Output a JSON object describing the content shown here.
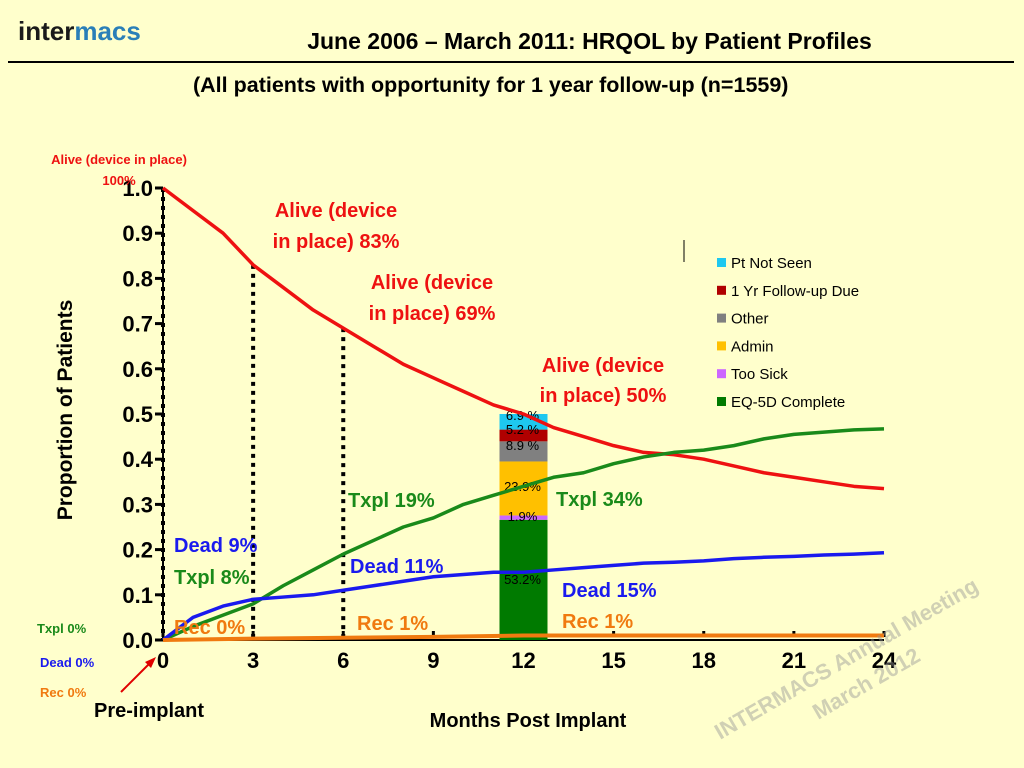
{
  "logo": {
    "part1": "inter",
    "part2": "macs"
  },
  "title": "June 2006 – March 2011:  HRQOL by Patient Profiles",
  "subtitle": "(All patients with opportunity for 1 year follow-up (n=1559)",
  "watermark": {
    "line1": "INTERMACS Annual Meeting",
    "line2": "March 2012"
  },
  "colors": {
    "alive": "#ee1111",
    "txpl": "#1a8a1a",
    "dead": "#1a1aee",
    "rec": "#f07a10",
    "pt_not_seen": "#1ec8f0",
    "followup_due": "#b00000",
    "other": "#808080",
    "admin": "#ffc000",
    "too_sick": "#cc66ff",
    "eq5d": "#007a00"
  },
  "chart_data": {
    "type": "line",
    "ylabel": "Proportion of Patients",
    "xlabel": "Months Post Implant",
    "xlim": [
      0,
      24
    ],
    "ylim": [
      0,
      1.0
    ],
    "xticks": [
      "0",
      "3",
      "6",
      "9",
      "12",
      "15",
      "18",
      "21",
      "24"
    ],
    "yticks": [
      "0.0",
      "0.1",
      "0.2",
      "0.3",
      "0.4",
      "0.5",
      "0.6",
      "0.7",
      "0.8",
      "0.9",
      "1.0"
    ],
    "series": [
      {
        "key": "alive",
        "x": [
          0,
          1,
          2,
          3,
          4,
          5,
          6,
          7,
          8,
          9,
          10,
          11,
          12,
          13,
          14,
          15,
          16,
          17,
          18,
          19,
          20,
          21,
          22,
          23,
          24
        ],
        "values": [
          1.0,
          0.95,
          0.9,
          0.83,
          0.78,
          0.73,
          0.69,
          0.65,
          0.61,
          0.58,
          0.55,
          0.52,
          0.5,
          0.47,
          0.45,
          0.43,
          0.415,
          0.41,
          0.4,
          0.385,
          0.37,
          0.36,
          0.35,
          0.34,
          0.335
        ]
      },
      {
        "key": "txpl",
        "x": [
          0,
          1,
          2,
          3,
          4,
          5,
          6,
          7,
          8,
          9,
          10,
          11,
          12,
          13,
          14,
          15,
          16,
          17,
          18,
          19,
          20,
          21,
          22,
          23,
          24
        ],
        "values": [
          0.0,
          0.03,
          0.055,
          0.08,
          0.12,
          0.155,
          0.19,
          0.22,
          0.25,
          0.27,
          0.3,
          0.32,
          0.34,
          0.36,
          0.37,
          0.39,
          0.405,
          0.415,
          0.42,
          0.43,
          0.445,
          0.455,
          0.46,
          0.465,
          0.467
        ]
      },
      {
        "key": "dead",
        "x": [
          0,
          1,
          2,
          3,
          4,
          5,
          6,
          7,
          8,
          9,
          10,
          11,
          12,
          13,
          14,
          15,
          16,
          17,
          18,
          19,
          20,
          21,
          22,
          23,
          24
        ],
        "values": [
          0.0,
          0.05,
          0.075,
          0.09,
          0.095,
          0.1,
          0.11,
          0.12,
          0.13,
          0.14,
          0.145,
          0.15,
          0.15,
          0.155,
          0.16,
          0.165,
          0.17,
          0.172,
          0.175,
          0.18,
          0.183,
          0.185,
          0.188,
          0.19,
          0.193
        ]
      },
      {
        "key": "rec",
        "x": [
          0,
          3,
          6,
          9,
          12,
          15,
          18,
          21,
          24
        ],
        "values": [
          0.0,
          0.003,
          0.005,
          0.007,
          0.01,
          0.01,
          0.01,
          0.01,
          0.01
        ]
      }
    ],
    "milestones": [
      3,
      6
    ],
    "bar": {
      "x": 12,
      "segments": [
        {
          "key": "eq5d",
          "value": 0.266,
          "label": "53.2%"
        },
        {
          "key": "too_sick",
          "value": 0.0095,
          "label": "1.9%"
        },
        {
          "key": "admin",
          "value": 0.1195,
          "label": "23.9%"
        },
        {
          "key": "other",
          "value": 0.0445,
          "label": "8.9 %"
        },
        {
          "key": "followup_due",
          "value": 0.026,
          "label": "5.2 %"
        },
        {
          "key": "pt_not_seen",
          "value": 0.0345,
          "label": "6.9 %"
        }
      ]
    },
    "legend": [
      {
        "key": "pt_not_seen",
        "label": "Pt Not Seen"
      },
      {
        "key": "followup_due",
        "label": "1 Yr Follow-up Due"
      },
      {
        "key": "other",
        "label": "Other"
      },
      {
        "key": "admin",
        "label": "Admin"
      },
      {
        "key": "too_sick",
        "label": "Too Sick"
      },
      {
        "key": "eq5d",
        "label": "EQ-5D Complete"
      }
    ],
    "annotations": {
      "alive_100": [
        "Alive (device in place)",
        "100%"
      ],
      "alive_83": [
        "Alive (device",
        "in place) 83%"
      ],
      "alive_69": [
        "Alive (device",
        "in place) 69%"
      ],
      "alive_50": [
        "Alive (device",
        "in place) 50%"
      ],
      "dead_9": "Dead 9%",
      "txpl_8": "Txpl 8%",
      "txpl_19": "Txpl 19%",
      "txpl_34": "Txpl 34%",
      "dead_11": "Dead 11%",
      "dead_15": "Dead 15%",
      "rec_0": "Rec 0%",
      "rec_1a": "Rec 1%",
      "rec_1b": "Rec 1%",
      "txpl_0": "Txpl 0%",
      "dead_0": "Dead 0%",
      "rec_0b": "Rec 0%",
      "pre_implant": "Pre-implant"
    }
  }
}
